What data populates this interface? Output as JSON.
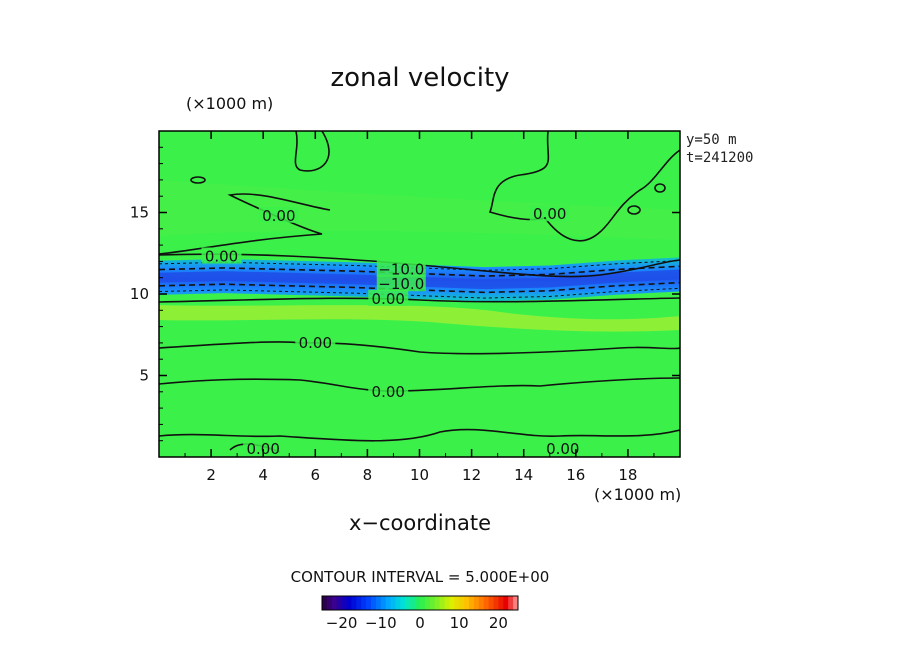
{
  "chart_data": {
    "type": "heatmap",
    "title": "zonal velocity",
    "xlabel": "x−coordinate",
    "x_unit_label": "(×1000 m)",
    "y_unit_label": "(×1000 m)",
    "xlim": [
      0,
      20
    ],
    "ylim": [
      0,
      20
    ],
    "x_ticks": [
      2,
      4,
      6,
      8,
      10,
      12,
      14,
      16,
      18
    ],
    "y_ticks": [
      5,
      10,
      15
    ],
    "annotations": [
      "y=50 m",
      "t=241200"
    ],
    "contour_interval_text": "CONTOUR INTERVAL = 5.000E+00",
    "contour_labels": [
      {
        "text": "0.00",
        "x": 4.6,
        "y": 14.8
      },
      {
        "text": "0.00",
        "x": 2.4,
        "y": 12.3
      },
      {
        "text": "0.00",
        "x": 15.0,
        "y": 14.9
      },
      {
        "text": "−10.0",
        "x": 9.3,
        "y": 11.5
      },
      {
        "text": "−10.0",
        "x": 9.3,
        "y": 10.6
      },
      {
        "text": "0.00",
        "x": 8.8,
        "y": 9.7
      },
      {
        "text": "0.00",
        "x": 6.0,
        "y": 7.0
      },
      {
        "text": "0.00",
        "x": 8.8,
        "y": 4.0
      },
      {
        "text": "0.00",
        "x": 4.0,
        "y": 0.5
      },
      {
        "text": "0.00",
        "x": 15.5,
        "y": 0.5
      }
    ],
    "jet_center_y": [
      11.0,
      11.1,
      11.0,
      10.9,
      10.75,
      10.6,
      10.7,
      11.0,
      11.2
    ],
    "jet_center_x": [
      0,
      2.5,
      5,
      7.5,
      10,
      12.5,
      15,
      17.5,
      20
    ],
    "jet_min_value": -20,
    "colorbar": {
      "ticks": [
        -20,
        -10,
        0,
        10,
        20
      ],
      "tick_labels": [
        "−20",
        "−10",
        "0",
        "10",
        "20"
      ],
      "range": [
        -25,
        25
      ]
    }
  }
}
